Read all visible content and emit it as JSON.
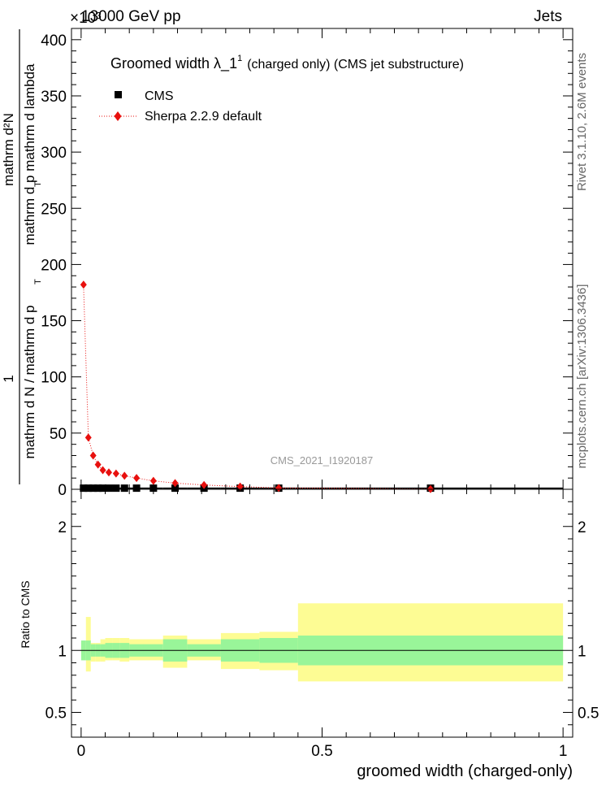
{
  "header": {
    "energy_label": "13000 GeV pp",
    "process_label": "Jets",
    "exponent_label": "×10³",
    "side_label_top": "Rivet 3.1.10, 2.6M events",
    "side_label_bottom": "mcplots.cern.ch [arXiv:1306.3436]",
    "analysis_id": "CMS_2021_I1920187"
  },
  "main_plot": {
    "title_main": "Groomed width  λ_1",
    "title_sup": "1",
    "title_suffix": "(charged only) (CMS jet substructure)",
    "ylabel_numerator": "mathrm d²N",
    "ylabel_mid": "mathrm d p  mathrm d lambda",
    "ylabel_mid_sub": "T",
    "ylabel_denominator": "mathrm d N / mathrm d p",
    "ylabel_den_sub": "T",
    "ylabel_one": "1",
    "legend": [
      {
        "label": "CMS",
        "marker": "square",
        "color": "#000000"
      },
      {
        "label": "Sherpa 2.2.9 default",
        "marker": "diamond",
        "color": "#e8100e"
      }
    ]
  },
  "ratio_plot": {
    "ylabel": "Ratio to CMS",
    "xlabel": "groomed width (charged-only)"
  },
  "colors": {
    "mc": "#e8100e",
    "data": "#000000",
    "band_inner": "#99f599",
    "band_outer": "#fdfc94"
  },
  "chart_data": {
    "type": "scatter",
    "xlim": [
      -0.02,
      1.02
    ],
    "ylim": [
      0,
      410000
    ],
    "x_ticks": [
      0,
      0.5,
      1
    ],
    "x_tick_labels": [
      "0",
      "0.5",
      "1"
    ],
    "y_ticks": [
      0,
      50000,
      100000,
      150000,
      200000,
      250000,
      300000,
      350000,
      400000
    ],
    "y_tick_labels": [
      "0",
      "50",
      "100",
      "150",
      "200",
      "250",
      "300",
      "350",
      "400"
    ],
    "bin_edges": [
      0,
      0.01,
      0.02,
      0.03,
      0.04,
      0.05,
      0.065,
      0.08,
      0.1,
      0.13,
      0.17,
      0.22,
      0.29,
      0.37,
      0.45,
      1.0
    ],
    "series": [
      {
        "name": "CMS",
        "x": [
          0.005,
          0.015,
          0.025,
          0.035,
          0.045,
          0.0575,
          0.0725,
          0.09,
          0.115,
          0.15,
          0.195,
          0.255,
          0.33,
          0.41,
          0.725
        ],
        "y": [
          1000,
          1000,
          1000,
          1000,
          1000,
          1000,
          1000,
          1000,
          1000,
          1000,
          1000,
          1000,
          1000,
          1000,
          1000
        ]
      },
      {
        "name": "Sherpa 2.2.9 default",
        "x": [
          0.005,
          0.015,
          0.025,
          0.035,
          0.045,
          0.0575,
          0.0725,
          0.09,
          0.115,
          0.15,
          0.195,
          0.255,
          0.33,
          0.41,
          0.725
        ],
        "y": [
          182000,
          46000,
          30000,
          22000,
          17000,
          15000,
          14000,
          12000,
          10000,
          7500,
          5500,
          3800,
          2400,
          1200,
          200
        ]
      }
    ],
    "ratio": {
      "ylim": [
        0.3,
        2.3
      ],
      "y_ticks": [
        0.5,
        1,
        2
      ],
      "y_tick_labels": [
        "0.5",
        "1",
        "2"
      ],
      "inner_band": [
        [
          0.92,
          1.08
        ],
        [
          0.92,
          1.08
        ],
        [
          0.95,
          1.05
        ],
        [
          0.95,
          1.05
        ],
        [
          0.95,
          1.05
        ],
        [
          0.94,
          1.06
        ],
        [
          0.94,
          1.06
        ],
        [
          0.94,
          1.06
        ],
        [
          0.95,
          1.05
        ],
        [
          0.95,
          1.05
        ],
        [
          0.91,
          1.09
        ],
        [
          0.95,
          1.05
        ],
        [
          0.91,
          1.09
        ],
        [
          0.9,
          1.1
        ],
        [
          0.88,
          1.12
        ]
      ],
      "outer_band": [
        [
          0.98,
          1.02
        ],
        [
          0.83,
          1.27
        ],
        [
          0.91,
          1.06
        ],
        [
          0.91,
          1.06
        ],
        [
          0.91,
          1.09
        ],
        [
          0.92,
          1.1
        ],
        [
          0.92,
          1.1
        ],
        [
          0.91,
          1.1
        ],
        [
          0.92,
          1.09
        ],
        [
          0.92,
          1.09
        ],
        [
          0.86,
          1.12
        ],
        [
          0.92,
          1.09
        ],
        [
          0.85,
          1.14
        ],
        [
          0.84,
          1.15
        ],
        [
          0.75,
          1.38
        ]
      ]
    }
  }
}
